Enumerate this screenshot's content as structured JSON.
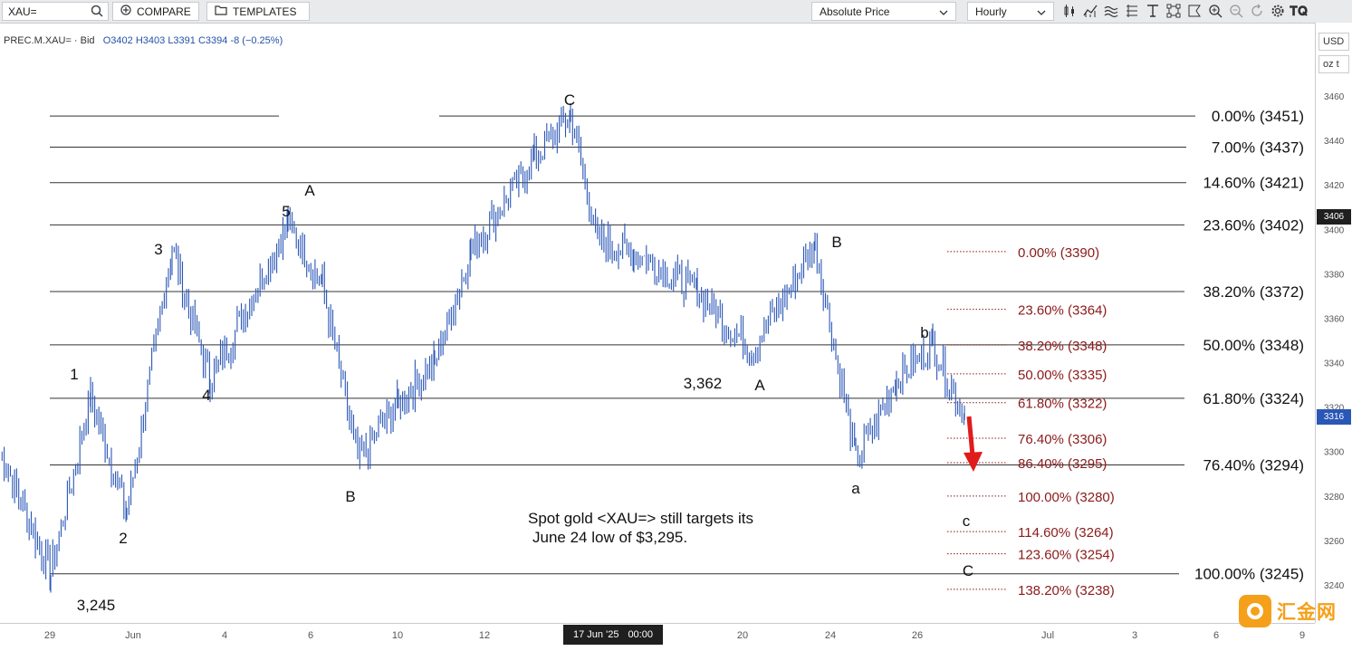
{
  "toolbar": {
    "symbol_value": "XAU=",
    "compare_label": "COMPARE",
    "templates_label": "TEMPLATES",
    "price_mode": "Absolute Price",
    "interval": "Hourly"
  },
  "legend": {
    "instrument": "PREC.M.XAU= · Bid",
    "open": "O3402",
    "high": "H3403",
    "low": "L3391",
    "close": "C3394",
    "change": "-8 (−0.25%)"
  },
  "right_axis": {
    "currency": "USD",
    "unit": "oz t",
    "last_price_badge": "3406",
    "current_price_badge": "3316"
  },
  "crosshair": {
    "date": "17 Jun '25",
    "time": "00:00"
  },
  "watermark": {
    "text": "汇金网"
  },
  "chart_data": {
    "type": "line",
    "ylim": [
      3230,
      3470
    ],
    "y_ticks": [
      3460,
      3440,
      3420,
      3400,
      3380,
      3360,
      3340,
      3320,
      3300,
      3280,
      3260,
      3240
    ],
    "x_ticks": [
      "29",
      "Jun",
      "4",
      "6",
      "10",
      "12",
      "20",
      "24",
      "26",
      "Jul",
      "3",
      "6",
      "9"
    ],
    "series": [
      {
        "x": [
          "May 28",
          "May 29",
          "May 30",
          "Jun 2",
          "Jun 3",
          "Jun 4",
          "Jun 5",
          "Jun 6",
          "Jun 9",
          "Jun 10",
          "Jun 11",
          "Jun 12",
          "Jun 13",
          "Jun 16",
          "Jun 17",
          "Jun 18",
          "Jun 19",
          "Jun 20",
          "Jun 23",
          "Jun 24",
          "Jun 25",
          "Jun 26",
          "Jun 27"
        ],
        "y": [
          3300,
          3245,
          3325,
          3272,
          3392,
          3331,
          3403,
          3375,
          3296,
          3322,
          3340,
          3390,
          3432,
          3451,
          3395,
          3390,
          3372,
          3345,
          3393,
          3296,
          3332,
          3348,
          3316
        ]
      }
    ],
    "fib_major": {
      "levels": [
        {
          "label": "0.00% (3451)",
          "price": 3451
        },
        {
          "label": "7.00% (3437)",
          "price": 3437
        },
        {
          "label": "14.60% (3421)",
          "price": 3421
        },
        {
          "label": "23.60% (3402)",
          "price": 3402
        },
        {
          "label": "38.20% (3372)",
          "price": 3372
        },
        {
          "label": "50.00% (3348)",
          "price": 3348
        },
        {
          "label": "61.80% (3324)",
          "price": 3324
        },
        {
          "label": "76.40% (3294)",
          "price": 3294
        },
        {
          "label": "100.00% (3245)",
          "price": 3245
        }
      ]
    },
    "fib_minor": {
      "levels": [
        {
          "label": "0.00% (3390)",
          "price": 3390
        },
        {
          "label": "23.60% (3364)",
          "price": 3364
        },
        {
          "label": "38.20% (3348)",
          "price": 3348
        },
        {
          "label": "50.00% (3335)",
          "price": 3335
        },
        {
          "label": "61.80% (3322)",
          "price": 3322
        },
        {
          "label": "76.40% (3306)",
          "price": 3306
        },
        {
          "label": "86.40% (3295)",
          "price": 3295
        },
        {
          "label": "100.00% (3280)",
          "price": 3280
        },
        {
          "label": "114.60% (3264)",
          "price": 3264
        },
        {
          "label": "123.60% (3254)",
          "price": 3254
        },
        {
          "label": "138.20% (3238)",
          "price": 3238
        }
      ]
    },
    "wave_labels": [
      "1",
      "2",
      "3",
      "4",
      "5",
      "A",
      "B",
      "C",
      "A",
      "B",
      "a",
      "b",
      "c",
      "C"
    ],
    "price_labels": [
      "3,245",
      "3,362"
    ],
    "annotation": [
      "Spot gold <XAU=> still targets its",
      "June 24 low of $3,295."
    ],
    "colors": {
      "price": "#2a56b6",
      "fib_major": "#333333",
      "fib_minor": "#8b1a1a",
      "arrow": "#e01b1b"
    }
  }
}
